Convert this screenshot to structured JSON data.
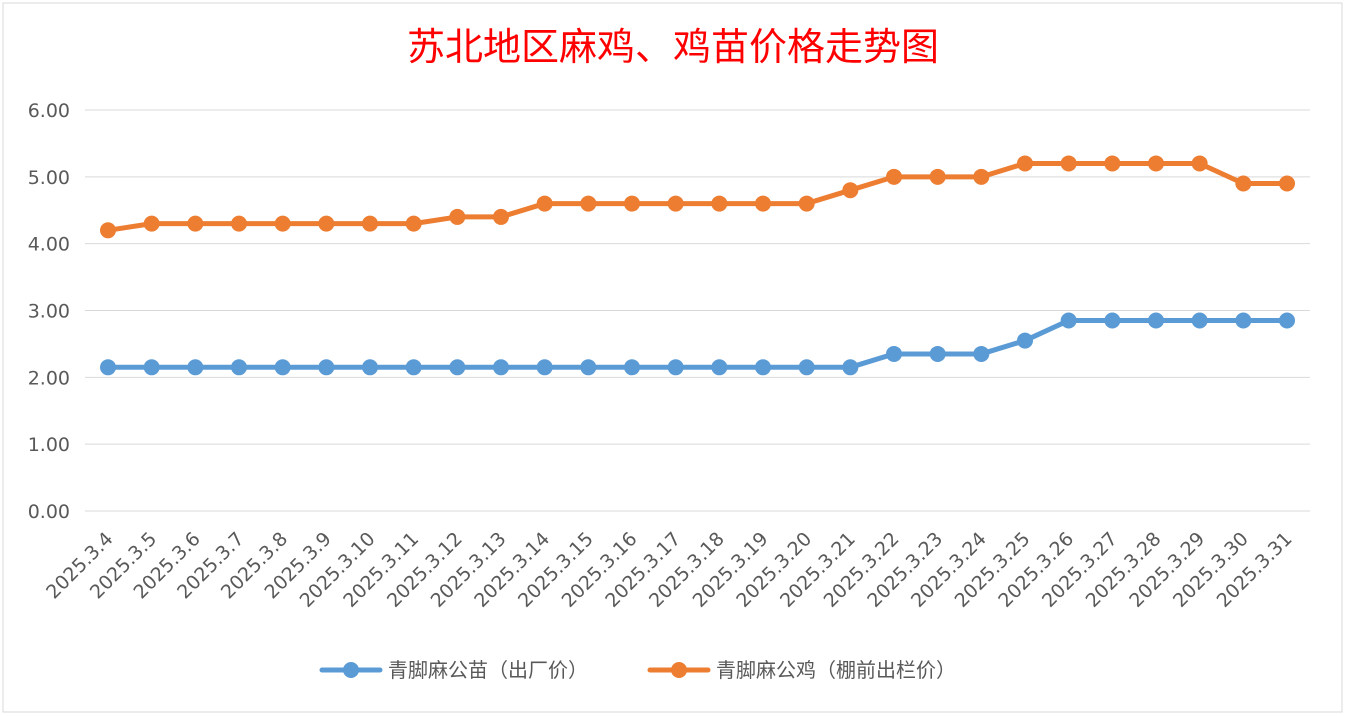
{
  "chart_data": {
    "type": "line",
    "title": "苏北地区麻鸡、鸡苗价格走势图",
    "categories": [
      "2025.3.4",
      "2025.3.5",
      "2025.3.6",
      "2025.3.7",
      "2025.3.8",
      "2025.3.9",
      "2025.3.10",
      "2025.3.11",
      "2025.3.12",
      "2025.3.13",
      "2025.3.14",
      "2025.3.15",
      "2025.3.16",
      "2025.3.17",
      "2025.3.18",
      "2025.3.19",
      "2025.3.20",
      "2025.3.21",
      "2025.3.22",
      "2025.3.23",
      "2025.3.24",
      "2025.3.25",
      "2025.3.26",
      "2025.3.27",
      "2025.3.28",
      "2025.3.29",
      "2025.3.30",
      "2025.3.31"
    ],
    "ylim": [
      0,
      6
    ],
    "yticks": [
      "0.00",
      "1.00",
      "2.00",
      "3.00",
      "4.00",
      "5.00",
      "6.00"
    ],
    "grid": true,
    "legend_position": "bottom",
    "series": [
      {
        "name": "青脚麻公苗（出厂价）",
        "color": "#5b9bd5",
        "values": [
          2.15,
          2.15,
          2.15,
          2.15,
          2.15,
          2.15,
          2.15,
          2.15,
          2.15,
          2.15,
          2.15,
          2.15,
          2.15,
          2.15,
          2.15,
          2.15,
          2.15,
          2.15,
          2.35,
          2.35,
          2.35,
          2.55,
          2.85,
          2.85,
          2.85,
          2.85,
          2.85,
          2.85
        ]
      },
      {
        "name": "青脚麻公鸡（棚前出栏价）",
        "color": "#ed7d31",
        "values": [
          4.2,
          4.3,
          4.3,
          4.3,
          4.3,
          4.3,
          4.3,
          4.3,
          4.4,
          4.4,
          4.6,
          4.6,
          4.6,
          4.6,
          4.6,
          4.6,
          4.6,
          4.8,
          5.0,
          5.0,
          5.0,
          5.2,
          5.2,
          5.2,
          5.2,
          5.2,
          4.9,
          4.9
        ]
      }
    ]
  }
}
